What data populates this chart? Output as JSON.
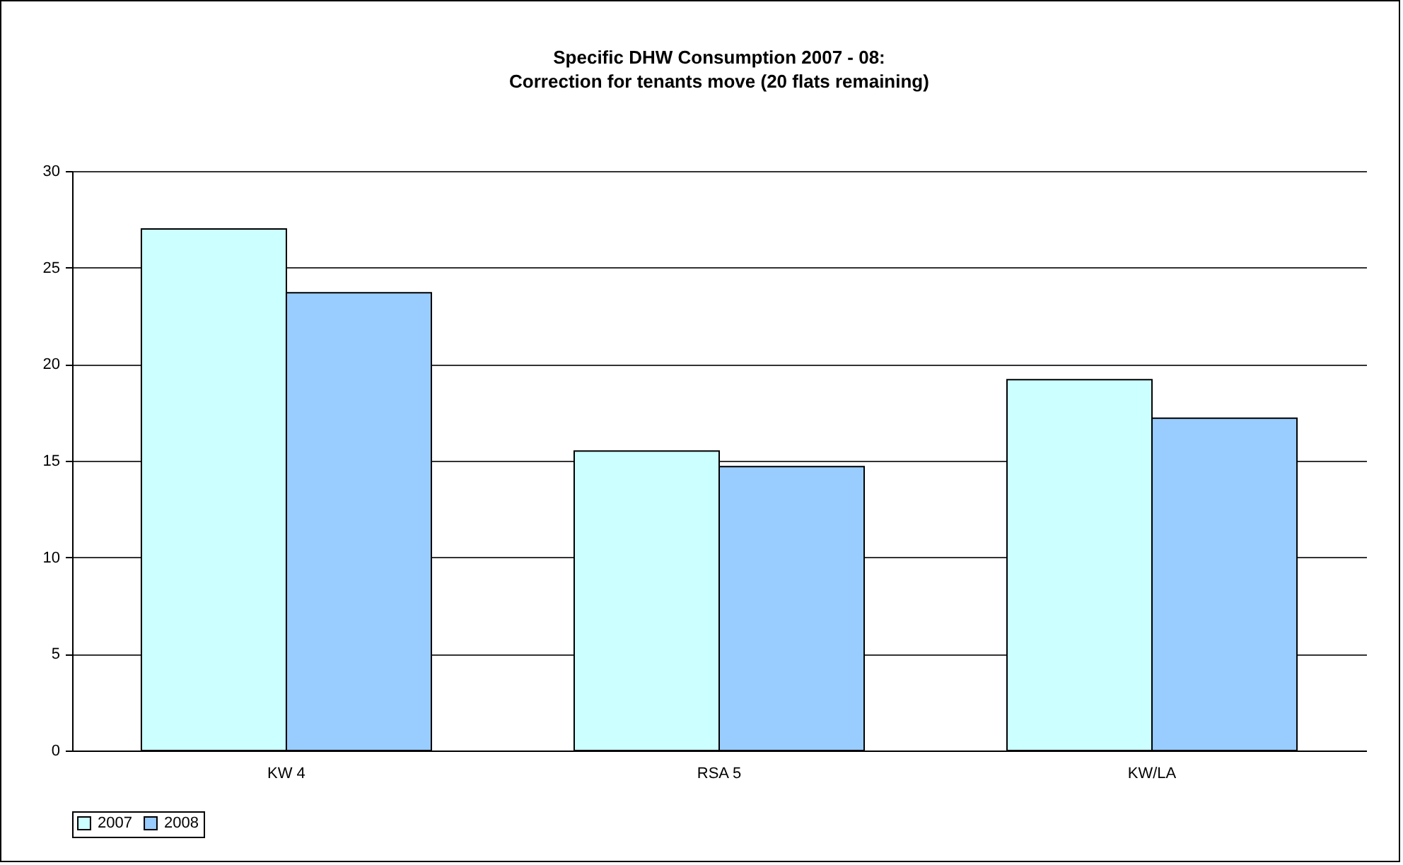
{
  "chart_data": {
    "type": "bar",
    "title": "Specific DHW Consumption 2007 - 08:\nCorrection for tenants move (20 flats remaining)",
    "categories": [
      "KW 4",
      "RSA 5",
      "KW/LA"
    ],
    "series": [
      {
        "name": "2007",
        "color": "#ccffff",
        "values": [
          27.0,
          15.5,
          19.2
        ]
      },
      {
        "name": "2008",
        "color": "#99ccff",
        "values": [
          23.7,
          14.7,
          17.2
        ]
      }
    ],
    "ylim": [
      0,
      30
    ],
    "yticks": [
      0,
      5,
      10,
      15,
      20,
      25,
      30
    ],
    "grid": "y",
    "legend": "bottom"
  }
}
